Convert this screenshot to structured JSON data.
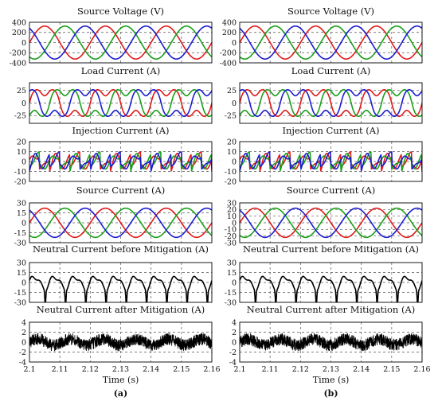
{
  "colors": {
    "phase_a": "#e01a1a",
    "phase_b": "#1aa01a",
    "phase_c": "#1c1ccf",
    "neutral": "#000000",
    "grid": "#555555"
  },
  "figure": {
    "panel_captions": [
      "(a)",
      "(b)"
    ],
    "x_axis_label": "Time (s)",
    "x_ticks": [
      "2.1",
      "2.11",
      "2.12",
      "2.13",
      "2.14",
      "2.15",
      "2.16"
    ]
  },
  "chart_data": [
    {
      "panel": "a",
      "type": "line",
      "title": "Source Voltage (V)",
      "xlim": [
        2.1,
        2.16
      ],
      "ylim": [
        -400,
        400
      ],
      "yticks": [
        400,
        200,
        0,
        -200,
        -400
      ],
      "grid": true,
      "series": [
        {
          "color": "phase_a",
          "waveform": "sinusoid",
          "amplitude": 325,
          "frequency_hz": 50,
          "phase_deg": 0
        },
        {
          "color": "phase_b",
          "waveform": "sinusoid",
          "amplitude": 325,
          "frequency_hz": 50,
          "phase_deg": -120
        },
        {
          "color": "phase_c",
          "waveform": "sinusoid",
          "amplitude": 325,
          "frequency_hz": 50,
          "phase_deg": 120
        }
      ]
    },
    {
      "panel": "a",
      "type": "line",
      "title": "Load Current (A)",
      "xlim": [
        2.1,
        2.16
      ],
      "ylim": [
        -40,
        40
      ],
      "yticks": [
        25,
        0,
        -25
      ],
      "grid": true,
      "series": [
        {
          "color": "phase_a",
          "waveform": "nonlinear rectifier load current",
          "amplitude": 33,
          "frequency_hz": 50,
          "phase_deg": 0
        },
        {
          "color": "phase_b",
          "waveform": "nonlinear rectifier load current",
          "amplitude": 33,
          "frequency_hz": 50,
          "phase_deg": -120
        },
        {
          "color": "phase_c",
          "waveform": "nonlinear rectifier load current",
          "amplitude": 33,
          "frequency_hz": 50,
          "phase_deg": 120
        }
      ]
    },
    {
      "panel": "a",
      "type": "line",
      "title": "Injection Current (A)",
      "xlim": [
        2.1,
        2.16
      ],
      "ylim": [
        -20,
        20
      ],
      "yticks": [
        20,
        10,
        0,
        -10,
        -20
      ],
      "grid": true,
      "series": [
        {
          "color": "phase_a",
          "waveform": "harmonic compensation current",
          "amplitude": 13,
          "frequency_hz": 50,
          "phase_deg": 0
        },
        {
          "color": "phase_b",
          "waveform": "harmonic compensation current",
          "amplitude": 13,
          "frequency_hz": 50,
          "phase_deg": -120
        },
        {
          "color": "phase_c",
          "waveform": "harmonic compensation current",
          "amplitude": 13,
          "frequency_hz": 50,
          "phase_deg": 120
        }
      ]
    },
    {
      "panel": "a",
      "type": "line",
      "title": "Source Current (A)",
      "xlim": [
        2.1,
        2.16
      ],
      "ylim": [
        -30,
        30
      ],
      "yticks": [
        30,
        15,
        0,
        -15,
        -30
      ],
      "grid": true,
      "series": [
        {
          "color": "phase_a",
          "waveform": "sinusoid",
          "amplitude": 22,
          "frequency_hz": 50,
          "phase_deg": 0
        },
        {
          "color": "phase_b",
          "waveform": "sinusoid",
          "amplitude": 22,
          "frequency_hz": 50,
          "phase_deg": -120
        },
        {
          "color": "phase_c",
          "waveform": "sinusoid",
          "amplitude": 22,
          "frequency_hz": 50,
          "phase_deg": 120
        }
      ]
    },
    {
      "panel": "a",
      "type": "line",
      "title": "Neutral Current before Mitigation (A)",
      "xlim": [
        2.1,
        2.16
      ],
      "ylim": [
        -30,
        30
      ],
      "yticks": [
        30,
        15,
        0,
        -15,
        -30
      ],
      "grid": true,
      "series": [
        {
          "color": "neutral",
          "waveform": "triplen-harmonic neutral current",
          "peak": 15,
          "trough": -12,
          "frequency_hz": 150
        }
      ]
    },
    {
      "panel": "a",
      "type": "line",
      "title": "Neutral Current after Mitigation (A)",
      "xlim": [
        2.1,
        2.16
      ],
      "ylim": [
        -4,
        4
      ],
      "yticks": [
        4,
        2,
        0,
        -2,
        -4
      ],
      "grid": true,
      "series": [
        {
          "color": "neutral",
          "waveform": "residual noise",
          "amplitude": 1.2
        }
      ]
    },
    {
      "panel": "b",
      "type": "line",
      "title": "Source Voltage (V)",
      "xlim": [
        2.1,
        2.16
      ],
      "ylim": [
        -400,
        400
      ],
      "yticks": [
        400,
        200,
        0,
        -200,
        -400
      ],
      "grid": true,
      "series": [
        {
          "color": "phase_a",
          "waveform": "sinusoid",
          "amplitude": 325,
          "frequency_hz": 50,
          "phase_deg": 0
        },
        {
          "color": "phase_b",
          "waveform": "sinusoid",
          "amplitude": 325,
          "frequency_hz": 50,
          "phase_deg": -120
        },
        {
          "color": "phase_c",
          "waveform": "sinusoid",
          "amplitude": 325,
          "frequency_hz": 50,
          "phase_deg": 120
        }
      ]
    },
    {
      "panel": "b",
      "type": "line",
      "title": "Load Current (A)",
      "xlim": [
        2.1,
        2.16
      ],
      "ylim": [
        -40,
        40
      ],
      "yticks": [
        25,
        0,
        -25
      ],
      "grid": true,
      "series": [
        {
          "color": "phase_a",
          "waveform": "nonlinear rectifier load current",
          "amplitude": 33,
          "frequency_hz": 50,
          "phase_deg": 0
        },
        {
          "color": "phase_b",
          "waveform": "nonlinear rectifier load current",
          "amplitude": 33,
          "frequency_hz": 50,
          "phase_deg": -120
        },
        {
          "color": "phase_c",
          "waveform": "nonlinear rectifier load current",
          "amplitude": 33,
          "frequency_hz": 50,
          "phase_deg": 120
        }
      ]
    },
    {
      "panel": "b",
      "type": "line",
      "title": "Injection Current (A)",
      "xlim": [
        2.1,
        2.16
      ],
      "ylim": [
        -20,
        20
      ],
      "yticks": [
        20,
        10,
        0,
        -10,
        -20
      ],
      "grid": true,
      "series": [
        {
          "color": "phase_a",
          "waveform": "harmonic compensation current",
          "amplitude": 13,
          "frequency_hz": 50,
          "phase_deg": 0
        },
        {
          "color": "phase_b",
          "waveform": "harmonic compensation current",
          "amplitude": 13,
          "frequency_hz": 50,
          "phase_deg": -120
        },
        {
          "color": "phase_c",
          "waveform": "harmonic compensation current",
          "amplitude": 13,
          "frequency_hz": 50,
          "phase_deg": 120
        }
      ]
    },
    {
      "panel": "b",
      "type": "line",
      "title": "Source Current (A)",
      "xlim": [
        2.1,
        2.16
      ],
      "ylim": [
        -30,
        30
      ],
      "yticks": [
        30,
        20,
        10,
        0,
        -10,
        -20,
        -30
      ],
      "grid": true,
      "series": [
        {
          "color": "phase_a",
          "waveform": "sinusoid",
          "amplitude": 22,
          "frequency_hz": 50,
          "phase_deg": 0
        },
        {
          "color": "phase_b",
          "waveform": "sinusoid",
          "amplitude": 22,
          "frequency_hz": 50,
          "phase_deg": -120
        },
        {
          "color": "phase_c",
          "waveform": "sinusoid",
          "amplitude": 22,
          "frequency_hz": 50,
          "phase_deg": 120
        }
      ]
    },
    {
      "panel": "b",
      "type": "line",
      "title": "Neutral Current before Mitigation (A)",
      "xlim": [
        2.1,
        2.16
      ],
      "ylim": [
        -30,
        30
      ],
      "yticks": [
        30,
        15,
        0,
        -15,
        -30
      ],
      "grid": true,
      "series": [
        {
          "color": "neutral",
          "waveform": "triplen-harmonic neutral current",
          "peak": 15,
          "trough": -12,
          "frequency_hz": 150
        }
      ]
    },
    {
      "panel": "b",
      "type": "line",
      "title": "Neutral Current after Mitigation (A)",
      "xlim": [
        2.1,
        2.16
      ],
      "ylim": [
        -4,
        4
      ],
      "yticks": [
        4,
        2,
        0,
        -2,
        -4
      ],
      "grid": true,
      "series": [
        {
          "color": "neutral",
          "waveform": "residual noise",
          "amplitude": 1.2
        }
      ]
    }
  ]
}
